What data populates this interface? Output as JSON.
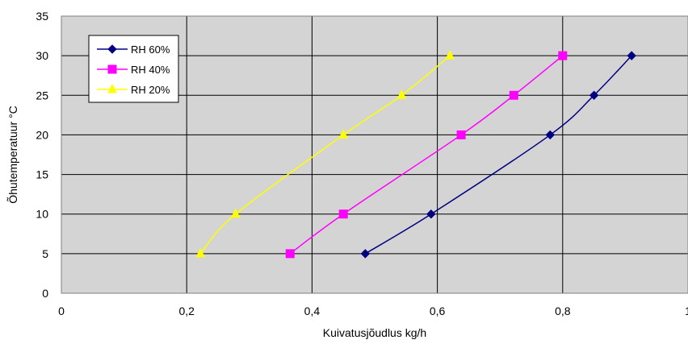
{
  "chart_data": {
    "type": "line",
    "xlabel": "Kuivatusjõudlus kg/h",
    "ylabel": "Õhutemperatuur °C",
    "xlim": [
      0,
      1
    ],
    "ylim": [
      0,
      35
    ],
    "x_ticks": [
      "0",
      "0,2",
      "0,4",
      "0,6",
      "0,8",
      "1"
    ],
    "y_ticks": [
      "0",
      "5",
      "10",
      "15",
      "20",
      "25",
      "30",
      "35"
    ],
    "grid": true,
    "plot_background": "#d4d4d4",
    "legend_position": "top-left",
    "series": [
      {
        "name": "RH 60%",
        "color": "#000080",
        "marker": "diamond",
        "x": [
          0.485,
          0.59,
          0.78,
          0.85,
          0.91
        ],
        "y": [
          5,
          10,
          20,
          25,
          30
        ]
      },
      {
        "name": "RH 40%",
        "color": "#ff00ff",
        "marker": "square",
        "x": [
          0.365,
          0.45,
          0.638,
          0.722,
          0.8
        ],
        "y": [
          5,
          10,
          20,
          25,
          30
        ]
      },
      {
        "name": "RH 20%",
        "color": "#ffff00",
        "marker": "triangle",
        "x": [
          0.222,
          0.278,
          0.45,
          0.543,
          0.62
        ],
        "y": [
          5,
          10,
          20,
          25,
          30
        ]
      }
    ]
  }
}
